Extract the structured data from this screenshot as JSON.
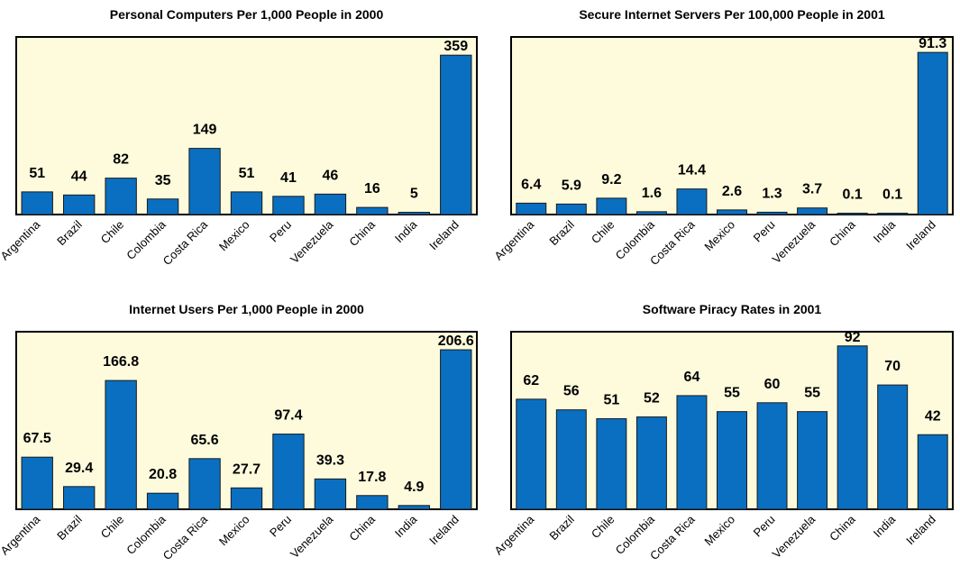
{
  "colors": {
    "bar": "#0a6fc0",
    "bar_stroke": "#1a1a1a",
    "plot_background": "#fdfbdc",
    "frame": "#000000"
  },
  "chart_data": [
    {
      "type": "bar",
      "title": "Personal Computers Per 1,000 People in 2000",
      "categories": [
        "Argentina",
        "Brazil",
        "Chile",
        "Colombia",
        "Costa Rica",
        "Mexico",
        "Peru",
        "Venezuela",
        "China",
        "India",
        "Ireland"
      ],
      "values": [
        51,
        44,
        82,
        35,
        149,
        51,
        41,
        46,
        16,
        5,
        359
      ],
      "value_labels": [
        "51",
        "44",
        "82",
        "35",
        "149",
        "51",
        "41",
        "46",
        "16",
        "5",
        "359"
      ],
      "ylim": [
        0,
        400
      ],
      "grid": false
    },
    {
      "type": "bar",
      "title": "Secure Internet Servers Per 100,000 People in 2001",
      "categories": [
        "Argentina",
        "Brazil",
        "Chile",
        "Colombia",
        "Costa Rica",
        "Mexico",
        "Peru",
        "Venezuela",
        "China",
        "India",
        "Ireland"
      ],
      "values": [
        6.4,
        5.9,
        9.2,
        1.6,
        14.4,
        2.6,
        1.3,
        3.7,
        0.1,
        0.1,
        91.3
      ],
      "value_labels": [
        "6.4",
        "5.9",
        "9.2",
        "1.6",
        "14.4",
        "2.6",
        "1.3",
        "3.7",
        "0.1",
        "0.1",
        "91.3"
      ],
      "ylim": [
        0,
        100
      ],
      "grid": false
    },
    {
      "type": "bar",
      "title": "Internet Users Per 1,000 People in 2000",
      "categories": [
        "Argentina",
        "Brazil",
        "Chile",
        "Colombia",
        "Costa Rica",
        "Mexico",
        "Peru",
        "Venezuela",
        "China",
        "India",
        "Ireland"
      ],
      "values": [
        67.5,
        29.4,
        166.8,
        20.8,
        65.6,
        27.7,
        97.4,
        39.3,
        17.8,
        4.9,
        206.6
      ],
      "value_labels": [
        "67.5",
        "29.4",
        "166.8",
        "20.8",
        "65.6",
        "27.7",
        "97.4",
        "39.3",
        "17.8",
        "4.9",
        "206.6"
      ],
      "ylim": [
        0,
        230
      ],
      "grid": false
    },
    {
      "type": "bar",
      "title": "Software Piracy Rates in 2001",
      "categories": [
        "Argentina",
        "Brazil",
        "Chile",
        "Colombia",
        "Costa Rica",
        "Mexico",
        "Peru",
        "Venezuela",
        "China",
        "India",
        "Ireland"
      ],
      "values": [
        62,
        56,
        51,
        52,
        64,
        55,
        60,
        55,
        92,
        70,
        42
      ],
      "value_labels": [
        "62",
        "56",
        "51",
        "52",
        "64",
        "55",
        "60",
        "55",
        "92",
        "70",
        "42"
      ],
      "ylim": [
        0,
        100
      ],
      "grid": false
    }
  ]
}
